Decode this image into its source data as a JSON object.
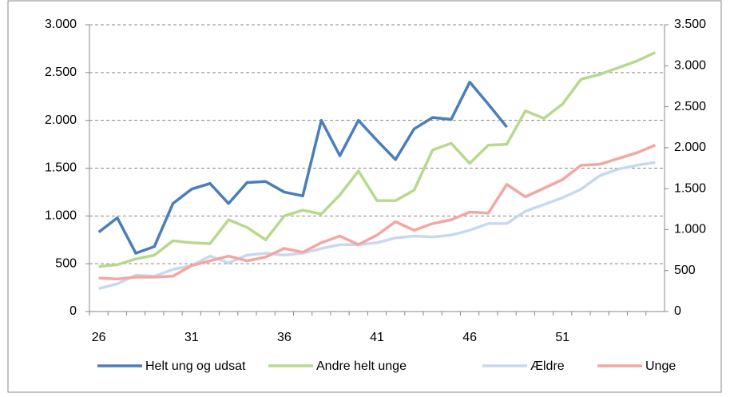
{
  "chart_data": {
    "type": "line",
    "categories": [
      "26",
      null,
      null,
      null,
      null,
      "31",
      null,
      null,
      null,
      null,
      "36",
      null,
      null,
      null,
      null,
      "41",
      null,
      null,
      null,
      null,
      "46",
      null,
      null,
      null,
      null,
      "51",
      null,
      null,
      null,
      null,
      null
    ],
    "series": [
      {
        "name": "Helt ung og udsat",
        "color": "#4a7ebb",
        "values": [
          830,
          980,
          610,
          680,
          1130,
          1280,
          1340,
          1130,
          1350,
          1360,
          1250,
          1210,
          2000,
          1630,
          2000,
          1790,
          1590,
          1910,
          2030,
          2010,
          2400,
          2170,
          1930,
          null,
          null,
          null,
          null,
          null,
          null,
          null,
          null
        ]
      },
      {
        "name": "Andre helt unge",
        "color": "#b7d98c",
        "values": [
          470,
          490,
          550,
          590,
          740,
          720,
          710,
          960,
          880,
          750,
          1000,
          1060,
          1020,
          1220,
          1470,
          1160,
          1160,
          1270,
          1690,
          1760,
          1550,
          1740,
          1750,
          2100,
          2020,
          2170,
          2430,
          2480,
          2550,
          2620,
          2710
        ]
      },
      {
        "name": "Ældre",
        "color": "#c6d9f0",
        "values": [
          240,
          290,
          380,
          370,
          440,
          480,
          580,
          510,
          590,
          610,
          590,
          610,
          660,
          700,
          700,
          720,
          770,
          790,
          780,
          800,
          850,
          920,
          920,
          1050,
          1120,
          1190,
          1280,
          1420,
          1490,
          1530,
          1560
        ]
      },
      {
        "name": "Unge",
        "color": "#f4a6a0",
        "values": [
          350,
          340,
          360,
          360,
          370,
          480,
          530,
          580,
          530,
          570,
          660,
          620,
          720,
          790,
          700,
          800,
          940,
          850,
          920,
          960,
          1040,
          1030,
          1330,
          1200,
          1290,
          1380,
          1530,
          1540,
          1600,
          1660,
          1740
        ]
      }
    ],
    "ylim": [
      0,
      3000
    ],
    "yticks": [
      0,
      500,
      {
        "value": 1000,
        "label": "1.000"
      },
      {
        "value": 1500,
        "label": "1.500"
      },
      {
        "value": 2000,
        "label": "2.000"
      },
      {
        "value": 2500,
        "label": "2.500"
      },
      {
        "value": 3000,
        "label": "3.000"
      }
    ],
    "y2lim": [
      0,
      3500
    ],
    "y2ticks": [
      0,
      500,
      {
        "value": 1000,
        "label": "1.000"
      },
      {
        "value": 1500,
        "label": "1.500"
      },
      {
        "value": 2000,
        "label": "2.000"
      },
      {
        "value": 2500,
        "label": "2.500"
      },
      {
        "value": 3000,
        "label": "3.000"
      },
      {
        "value": 3500,
        "label": "3.500"
      }
    ],
    "grid": true,
    "legend": "bottom"
  }
}
